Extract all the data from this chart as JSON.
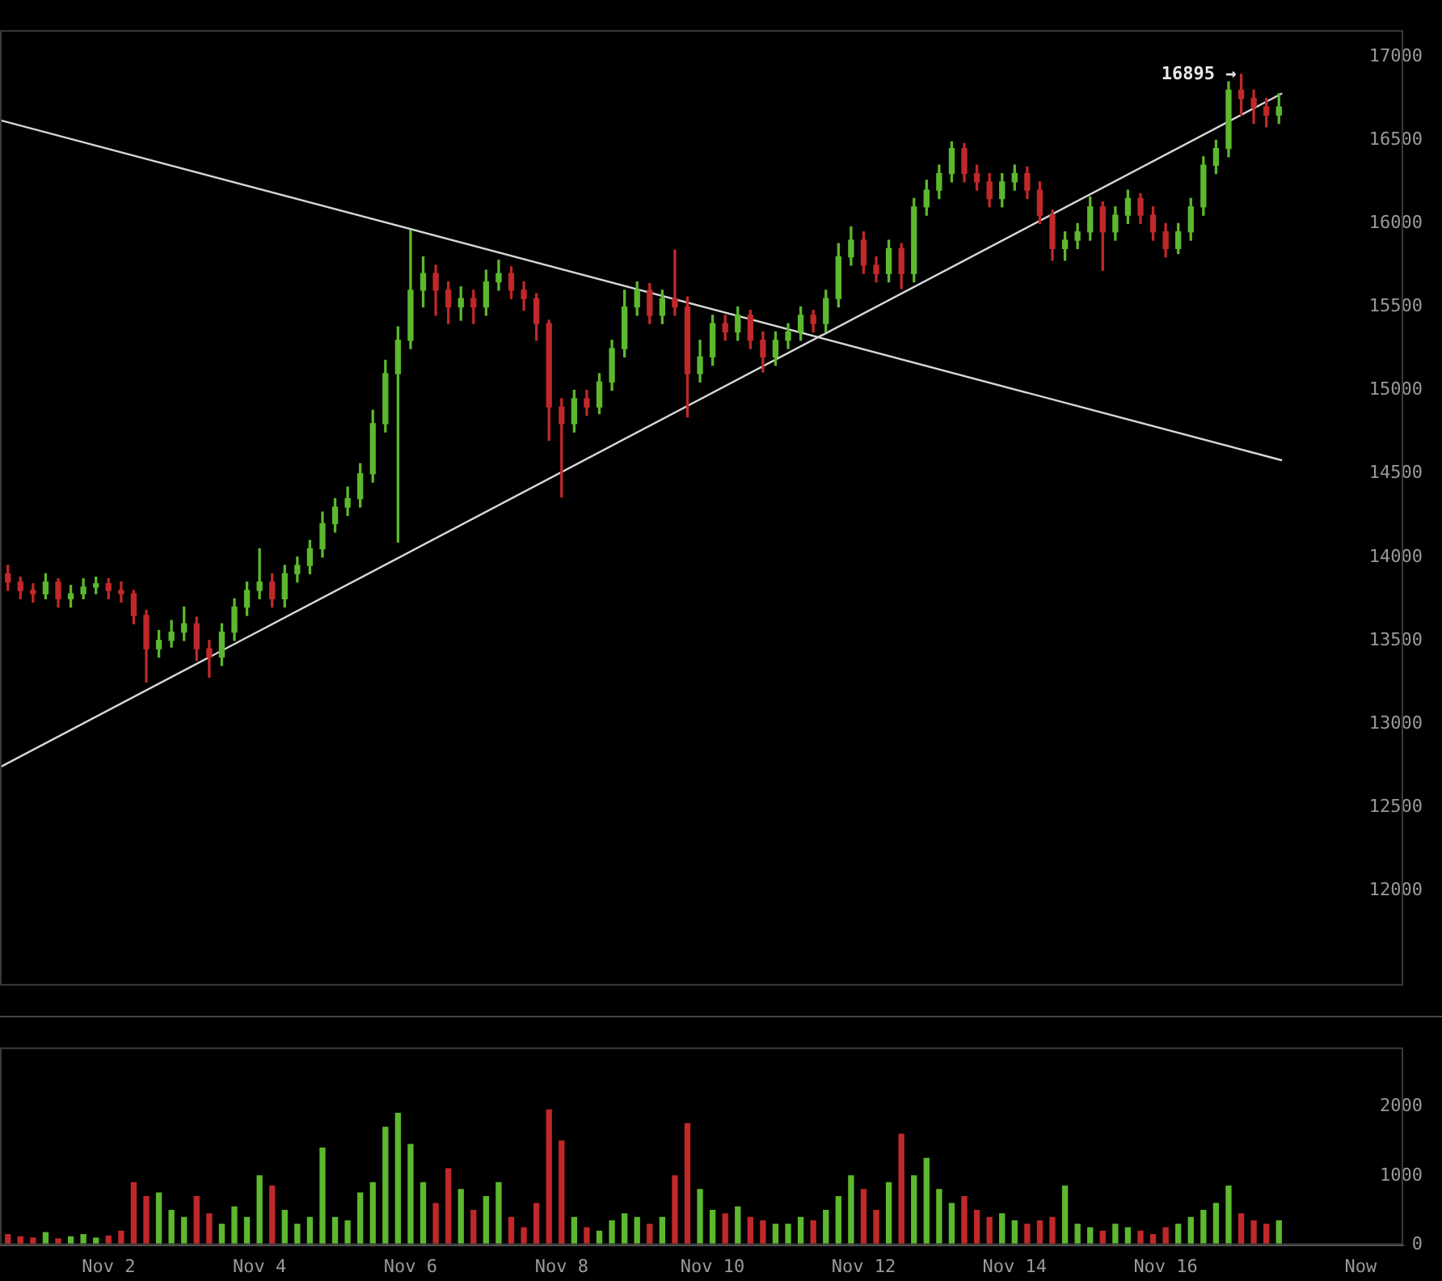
{
  "chart_data": [
    {
      "type": "candlestick",
      "tick_labels": "y",
      "grid": false,
      "xlim": [
        "--10-31T13:30",
        "--11-19T03:30"
      ],
      "ylim": [
        11430,
        17160
      ],
      "yticks": [
        12000,
        12500,
        13000,
        13500,
        14000,
        14500,
        15000,
        15500,
        16000,
        16500,
        17000
      ],
      "annotations": [
        {
          "text": "16895 →",
          "x": "--11-17T00:00",
          "y": 16895
        }
      ],
      "x": [
        "--10-31T16:00",
        "--10-31T20:00",
        "--11-01T00:00",
        "--11-01T04:00",
        "--11-01T08:00",
        "--11-01T12:00",
        "--11-01T16:00",
        "--11-01T20:00",
        "--11-02T00:00",
        "--11-02T04:00",
        "--11-02T08:00",
        "--11-02T12:00",
        "--11-02T16:00",
        "--11-02T20:00",
        "--11-03T00:00",
        "--11-03T04:00",
        "--11-03T08:00",
        "--11-03T12:00",
        "--11-03T16:00",
        "--11-03T20:00",
        "--11-04T00:00",
        "--11-04T04:00",
        "--11-04T08:00",
        "--11-04T12:00",
        "--11-04T16:00",
        "--11-04T20:00",
        "--11-05T00:00",
        "--11-05T04:00",
        "--11-05T08:00",
        "--11-05T12:00",
        "--11-05T16:00",
        "--11-05T20:00",
        "--11-06T00:00",
        "--11-06T04:00",
        "--11-06T08:00",
        "--11-06T12:00",
        "--11-06T16:00",
        "--11-06T20:00",
        "--11-07T00:00",
        "--11-07T04:00",
        "--11-07T08:00",
        "--11-07T12:00",
        "--11-07T16:00",
        "--11-07T20:00",
        "--11-08T00:00",
        "--11-08T04:00",
        "--11-08T08:00",
        "--11-08T12:00",
        "--11-08T16:00",
        "--11-08T20:00",
        "--11-09T00:00",
        "--11-09T04:00",
        "--11-09T08:00",
        "--11-09T12:00",
        "--11-09T16:00",
        "--11-09T20:00",
        "--11-10T00:00",
        "--11-10T04:00",
        "--11-10T08:00",
        "--11-10T12:00",
        "--11-10T16:00",
        "--11-10T20:00",
        "--11-11T00:00",
        "--11-11T04:00",
        "--11-11T08:00",
        "--11-11T12:00",
        "--11-11T16:00",
        "--11-11T20:00",
        "--11-12T00:00",
        "--11-12T04:00",
        "--11-12T08:00",
        "--11-12T12:00",
        "--11-12T16:00",
        "--11-12T20:00",
        "--11-13T00:00",
        "--11-13T04:00",
        "--11-13T08:00",
        "--11-13T12:00",
        "--11-13T16:00",
        "--11-13T20:00",
        "--11-14T00:00",
        "--11-14T04:00",
        "--11-14T08:00",
        "--11-14T12:00",
        "--11-14T16:00",
        "--11-14T20:00",
        "--11-15T00:00",
        "--11-15T04:00",
        "--11-15T08:00",
        "--11-15T12:00",
        "--11-15T16:00",
        "--11-15T20:00",
        "--11-16T00:00",
        "--11-16T04:00",
        "--11-16T08:00",
        "--11-16T12:00",
        "--11-16T16:00",
        "--11-16T20:00",
        "--11-17T00:00",
        "--11-17T04:00",
        "--11-17T08:00",
        "--11-17T12:00"
      ],
      "ohlc": [
        [
          13900,
          13950,
          13800,
          13850
        ],
        [
          13850,
          13880,
          13750,
          13800
        ],
        [
          13800,
          13840,
          13730,
          13780
        ],
        [
          13780,
          13900,
          13750,
          13850
        ],
        [
          13850,
          13870,
          13700,
          13750
        ],
        [
          13750,
          13830,
          13700,
          13780
        ],
        [
          13780,
          13870,
          13750,
          13820
        ],
        [
          13820,
          13880,
          13780,
          13840
        ],
        [
          13840,
          13870,
          13750,
          13800
        ],
        [
          13800,
          13850,
          13730,
          13780
        ],
        [
          13780,
          13800,
          13600,
          13650
        ],
        [
          13650,
          13680,
          13250,
          13450
        ],
        [
          13450,
          13560,
          13400,
          13500
        ],
        [
          13500,
          13620,
          13460,
          13550
        ],
        [
          13550,
          13700,
          13500,
          13600
        ],
        [
          13600,
          13640,
          13380,
          13450
        ],
        [
          13450,
          13500,
          13280,
          13400
        ],
        [
          13400,
          13600,
          13350,
          13550
        ],
        [
          13550,
          13750,
          13500,
          13700
        ],
        [
          13700,
          13850,
          13650,
          13800
        ],
        [
          13800,
          14050,
          13750,
          13850
        ],
        [
          13850,
          13900,
          13700,
          13750
        ],
        [
          13750,
          13950,
          13700,
          13900
        ],
        [
          13900,
          14000,
          13850,
          13950
        ],
        [
          13950,
          14100,
          13900,
          14050
        ],
        [
          14050,
          14270,
          14000,
          14200
        ],
        [
          14200,
          14350,
          14150,
          14300
        ],
        [
          14300,
          14420,
          14250,
          14350
        ],
        [
          14350,
          14560,
          14300,
          14500
        ],
        [
          14500,
          14880,
          14450,
          14800
        ],
        [
          14800,
          15180,
          14750,
          15100
        ],
        [
          15100,
          15380,
          14090,
          15300
        ],
        [
          15300,
          15960,
          15250,
          15600
        ],
        [
          15600,
          15800,
          15500,
          15700
        ],
        [
          15700,
          15750,
          15450,
          15600
        ],
        [
          15600,
          15650,
          15400,
          15500
        ],
        [
          15500,
          15620,
          15420,
          15550
        ],
        [
          15550,
          15600,
          15400,
          15500
        ],
        [
          15500,
          15720,
          15450,
          15650
        ],
        [
          15650,
          15780,
          15600,
          15700
        ],
        [
          15700,
          15740,
          15550,
          15600
        ],
        [
          15600,
          15650,
          15480,
          15550
        ],
        [
          15550,
          15580,
          15300,
          15400
        ],
        [
          15400,
          15420,
          14700,
          14900
        ],
        [
          14900,
          14950,
          14360,
          14800
        ],
        [
          14800,
          15000,
          14750,
          14950
        ],
        [
          14950,
          15000,
          14850,
          14900
        ],
        [
          14900,
          15100,
          14860,
          15050
        ],
        [
          15050,
          15300,
          15000,
          15250
        ],
        [
          15250,
          15600,
          15200,
          15500
        ],
        [
          15500,
          15650,
          15450,
          15600
        ],
        [
          15600,
          15640,
          15400,
          15450
        ],
        [
          15450,
          15600,
          15400,
          15550
        ],
        [
          15550,
          15840,
          15450,
          15500
        ],
        [
          15500,
          15560,
          14840,
          15100
        ],
        [
          15100,
          15300,
          15050,
          15200
        ],
        [
          15200,
          15450,
          15150,
          15400
        ],
        [
          15400,
          15450,
          15300,
          15350
        ],
        [
          15350,
          15500,
          15300,
          15450
        ],
        [
          15450,
          15480,
          15250,
          15300
        ],
        [
          15300,
          15350,
          15110,
          15200
        ],
        [
          15200,
          15350,
          15150,
          15300
        ],
        [
          15300,
          15400,
          15250,
          15350
        ],
        [
          15350,
          15500,
          15300,
          15450
        ],
        [
          15450,
          15480,
          15350,
          15400
        ],
        [
          15400,
          15600,
          15350,
          15550
        ],
        [
          15550,
          15880,
          15500,
          15800
        ],
        [
          15800,
          15980,
          15750,
          15900
        ],
        [
          15900,
          15950,
          15700,
          15750
        ],
        [
          15750,
          15800,
          15650,
          15700
        ],
        [
          15700,
          15900,
          15650,
          15850
        ],
        [
          15850,
          15880,
          15610,
          15700
        ],
        [
          15700,
          16150,
          15650,
          16100
        ],
        [
          16100,
          16260,
          16050,
          16200
        ],
        [
          16200,
          16350,
          16150,
          16300
        ],
        [
          16300,
          16490,
          16250,
          16450
        ],
        [
          16450,
          16480,
          16250,
          16300
        ],
        [
          16300,
          16350,
          16200,
          16250
        ],
        [
          16250,
          16300,
          16100,
          16150
        ],
        [
          16150,
          16300,
          16100,
          16250
        ],
        [
          16250,
          16350,
          16200,
          16300
        ],
        [
          16300,
          16340,
          16150,
          16200
        ],
        [
          16200,
          16250,
          16000,
          16050
        ],
        [
          16050,
          16080,
          15780,
          15850
        ],
        [
          15850,
          15950,
          15780,
          15900
        ],
        [
          15900,
          16000,
          15850,
          15950
        ],
        [
          15950,
          16160,
          15900,
          16100
        ],
        [
          16100,
          16130,
          15720,
          15950
        ],
        [
          15950,
          16100,
          15900,
          16050
        ],
        [
          16050,
          16200,
          16000,
          16150
        ],
        [
          16150,
          16180,
          16000,
          16050
        ],
        [
          16050,
          16100,
          15900,
          15950
        ],
        [
          15950,
          16000,
          15800,
          15850
        ],
        [
          15850,
          16000,
          15820,
          15950
        ],
        [
          15950,
          16150,
          15900,
          16100
        ],
        [
          16100,
          16400,
          16050,
          16350
        ],
        [
          16350,
          16500,
          16300,
          16450
        ],
        [
          16450,
          16850,
          16400,
          16800
        ],
        [
          16800,
          16895,
          16650,
          16750
        ],
        [
          16750,
          16800,
          16600,
          16700
        ],
        [
          16700,
          16750,
          16580,
          16650
        ],
        [
          16650,
          16780,
          16600,
          16700
        ]
      ],
      "colors": [
        "#c0282a",
        "#c0282a",
        "#c0282a",
        "#5cb82e",
        "#c0282a",
        "#5cb82e",
        "#5cb82e",
        "#5cb82e",
        "#c0282a",
        "#c0282a",
        "#c0282a",
        "#c0282a",
        "#5cb82e",
        "#5cb82e",
        "#5cb82e",
        "#c0282a",
        "#c0282a",
        "#5cb82e",
        "#5cb82e",
        "#5cb82e",
        "#5cb82e",
        "#c0282a",
        "#5cb82e",
        "#5cb82e",
        "#5cb82e",
        "#5cb82e",
        "#5cb82e",
        "#5cb82e",
        "#5cb82e",
        "#5cb82e",
        "#5cb82e",
        "#5cb82e",
        "#5cb82e",
        "#5cb82e",
        "#c0282a",
        "#c0282a",
        "#5cb82e",
        "#c0282a",
        "#5cb82e",
        "#5cb82e",
        "#c0282a",
        "#c0282a",
        "#c0282a",
        "#c0282a",
        "#c0282a",
        "#5cb82e",
        "#c0282a",
        "#5cb82e",
        "#5cb82e",
        "#5cb82e",
        "#5cb82e",
        "#c0282a",
        "#5cb82e",
        "#c0282a",
        "#c0282a",
        "#5cb82e",
        "#5cb82e",
        "#c0282a",
        "#5cb82e",
        "#c0282a",
        "#c0282a",
        "#5cb82e",
        "#5cb82e",
        "#5cb82e",
        "#c0282a",
        "#5cb82e",
        "#5cb82e",
        "#5cb82e",
        "#c0282a",
        "#c0282a",
        "#5cb82e",
        "#c0282a",
        "#5cb82e",
        "#5cb82e",
        "#5cb82e",
        "#5cb82e",
        "#c0282a",
        "#c0282a",
        "#c0282a",
        "#5cb82e",
        "#5cb82e",
        "#c0282a",
        "#c0282a",
        "#c0282a",
        "#5cb82e",
        "#5cb82e",
        "#5cb82e",
        "#c0282a",
        "#5cb82e",
        "#5cb82e",
        "#c0282a",
        "#c0282a",
        "#c0282a",
        "#5cb82e",
        "#5cb82e",
        "#5cb82e",
        "#5cb82e",
        "#5cb82e",
        "#c0282a",
        "#c0282a",
        "#c0282a",
        "#5cb82e"
      ],
      "series": [
        {
          "type": "line",
          "color": "#d8d8d8",
          "x": [
            "--10-31T13:30",
            "--11-17T13:00"
          ],
          "values": [
            16620,
            14580
          ]
        },
        {
          "type": "line",
          "color": "#d8d8d8",
          "x": [
            "--10-31T13:30",
            "--11-17T13:00"
          ],
          "values": [
            12740,
            16780
          ]
        }
      ]
    },
    {
      "type": "bar",
      "grid": false,
      "xlim": [
        "--10-31T13:30",
        "--11-19T03:30"
      ],
      "xticks": [
        {
          "value": "--11-02T00:00",
          "label": "Nov 2"
        },
        {
          "value": "--11-04T00:00",
          "label": "Nov 4"
        },
        {
          "value": "--11-06T00:00",
          "label": "Nov 6"
        },
        {
          "value": "--11-08T00:00",
          "label": "Nov 8"
        },
        {
          "value": "--11-10T00:00",
          "label": "Nov 10"
        },
        {
          "value": "--11-12T00:00",
          "label": "Nov 12"
        },
        {
          "value": "--11-14T00:00",
          "label": "Nov 14"
        },
        {
          "value": "--11-16T00:00",
          "label": "Nov 16"
        },
        {
          "value": "--11-18T14:00",
          "label": "Now"
        }
      ],
      "ylim": [
        0,
        2850
      ],
      "yticks": [
        0,
        1000,
        2000
      ],
      "x": [
        "--10-31T16:00",
        "--10-31T20:00",
        "--11-01T00:00",
        "--11-01T04:00",
        "--11-01T08:00",
        "--11-01T12:00",
        "--11-01T16:00",
        "--11-01T20:00",
        "--11-02T00:00",
        "--11-02T04:00",
        "--11-02T08:00",
        "--11-02T12:00",
        "--11-02T16:00",
        "--11-02T20:00",
        "--11-03T00:00",
        "--11-03T04:00",
        "--11-03T08:00",
        "--11-03T12:00",
        "--11-03T16:00",
        "--11-03T20:00",
        "--11-04T00:00",
        "--11-04T04:00",
        "--11-04T08:00",
        "--11-04T12:00",
        "--11-04T16:00",
        "--11-04T20:00",
        "--11-05T00:00",
        "--11-05T04:00",
        "--11-05T08:00",
        "--11-05T12:00",
        "--11-05T16:00",
        "--11-05T20:00",
        "--11-06T00:00",
        "--11-06T04:00",
        "--11-06T08:00",
        "--11-06T12:00",
        "--11-06T16:00",
        "--11-06T20:00",
        "--11-07T00:00",
        "--11-07T04:00",
        "--11-07T08:00",
        "--11-07T12:00",
        "--11-07T16:00",
        "--11-07T20:00",
        "--11-08T00:00",
        "--11-08T04:00",
        "--11-08T08:00",
        "--11-08T12:00",
        "--11-08T16:00",
        "--11-08T20:00",
        "--11-09T00:00",
        "--11-09T04:00",
        "--11-09T08:00",
        "--11-09T12:00",
        "--11-09T16:00",
        "--11-09T20:00",
        "--11-10T00:00",
        "--11-10T04:00",
        "--11-10T08:00",
        "--11-10T12:00",
        "--11-10T16:00",
        "--11-10T20:00",
        "--11-11T00:00",
        "--11-11T04:00",
        "--11-11T08:00",
        "--11-11T12:00",
        "--11-11T16:00",
        "--11-11T20:00",
        "--11-12T00:00",
        "--11-12T04:00",
        "--11-12T08:00",
        "--11-12T12:00",
        "--11-12T16:00",
        "--11-12T20:00",
        "--11-13T00:00",
        "--11-13T04:00",
        "--11-13T08:00",
        "--11-13T12:00",
        "--11-13T16:00",
        "--11-13T20:00",
        "--11-14T00:00",
        "--11-14T04:00",
        "--11-14T08:00",
        "--11-14T12:00",
        "--11-14T16:00",
        "--11-14T20:00",
        "--11-15T00:00",
        "--11-15T04:00",
        "--11-15T08:00",
        "--11-15T12:00",
        "--11-15T16:00",
        "--11-15T20:00",
        "--11-16T00:00",
        "--11-16T04:00",
        "--11-16T08:00",
        "--11-16T12:00",
        "--11-16T16:00",
        "--11-16T20:00",
        "--11-17T00:00",
        "--11-17T04:00",
        "--11-17T08:00",
        "--11-17T12:00"
      ],
      "values": [
        150,
        120,
        100,
        180,
        90,
        120,
        150,
        100,
        130,
        200,
        900,
        700,
        750,
        500,
        400,
        700,
        450,
        300,
        550,
        400,
        1000,
        850,
        500,
        300,
        400,
        1400,
        400,
        350,
        750,
        900,
        1700,
        1900,
        1450,
        900,
        600,
        1100,
        800,
        500,
        700,
        900,
        400,
        250,
        600,
        1950,
        1500,
        400,
        250,
        200,
        350,
        450,
        400,
        300,
        400,
        1000,
        1750,
        800,
        500,
        450,
        550,
        400,
        350,
        300,
        300,
        400,
        350,
        500,
        700,
        1000,
        800,
        500,
        900,
        1600,
        1000,
        1250,
        800,
        600,
        700,
        500,
        400,
        450,
        350,
        300,
        350,
        400,
        850,
        300,
        250,
        200,
        300,
        250,
        200,
        150,
        250,
        300,
        400,
        500,
        600,
        850,
        450,
        350,
        300,
        350
      ],
      "colors": [
        "#c0282a",
        "#c0282a",
        "#c0282a",
        "#5cb82e",
        "#c0282a",
        "#5cb82e",
        "#5cb82e",
        "#5cb82e",
        "#c0282a",
        "#c0282a",
        "#c0282a",
        "#c0282a",
        "#5cb82e",
        "#5cb82e",
        "#5cb82e",
        "#c0282a",
        "#c0282a",
        "#5cb82e",
        "#5cb82e",
        "#5cb82e",
        "#5cb82e",
        "#c0282a",
        "#5cb82e",
        "#5cb82e",
        "#5cb82e",
        "#5cb82e",
        "#5cb82e",
        "#5cb82e",
        "#5cb82e",
        "#5cb82e",
        "#5cb82e",
        "#5cb82e",
        "#5cb82e",
        "#5cb82e",
        "#c0282a",
        "#c0282a",
        "#5cb82e",
        "#c0282a",
        "#5cb82e",
        "#5cb82e",
        "#c0282a",
        "#c0282a",
        "#c0282a",
        "#c0282a",
        "#c0282a",
        "#5cb82e",
        "#c0282a",
        "#5cb82e",
        "#5cb82e",
        "#5cb82e",
        "#5cb82e",
        "#c0282a",
        "#5cb82e",
        "#c0282a",
        "#c0282a",
        "#5cb82e",
        "#5cb82e",
        "#c0282a",
        "#5cb82e",
        "#c0282a",
        "#c0282a",
        "#5cb82e",
        "#5cb82e",
        "#5cb82e",
        "#c0282a",
        "#5cb82e",
        "#5cb82e",
        "#5cb82e",
        "#c0282a",
        "#c0282a",
        "#5cb82e",
        "#c0282a",
        "#5cb82e",
        "#5cb82e",
        "#5cb82e",
        "#5cb82e",
        "#c0282a",
        "#c0282a",
        "#c0282a",
        "#5cb82e",
        "#5cb82e",
        "#c0282a",
        "#c0282a",
        "#c0282a",
        "#5cb82e",
        "#5cb82e",
        "#5cb82e",
        "#c0282a",
        "#5cb82e",
        "#5cb82e",
        "#c0282a",
        "#c0282a",
        "#c0282a",
        "#5cb82e",
        "#5cb82e",
        "#5cb82e",
        "#5cb82e",
        "#5cb82e",
        "#c0282a",
        "#c0282a",
        "#c0282a",
        "#5cb82e"
      ]
    }
  ]
}
